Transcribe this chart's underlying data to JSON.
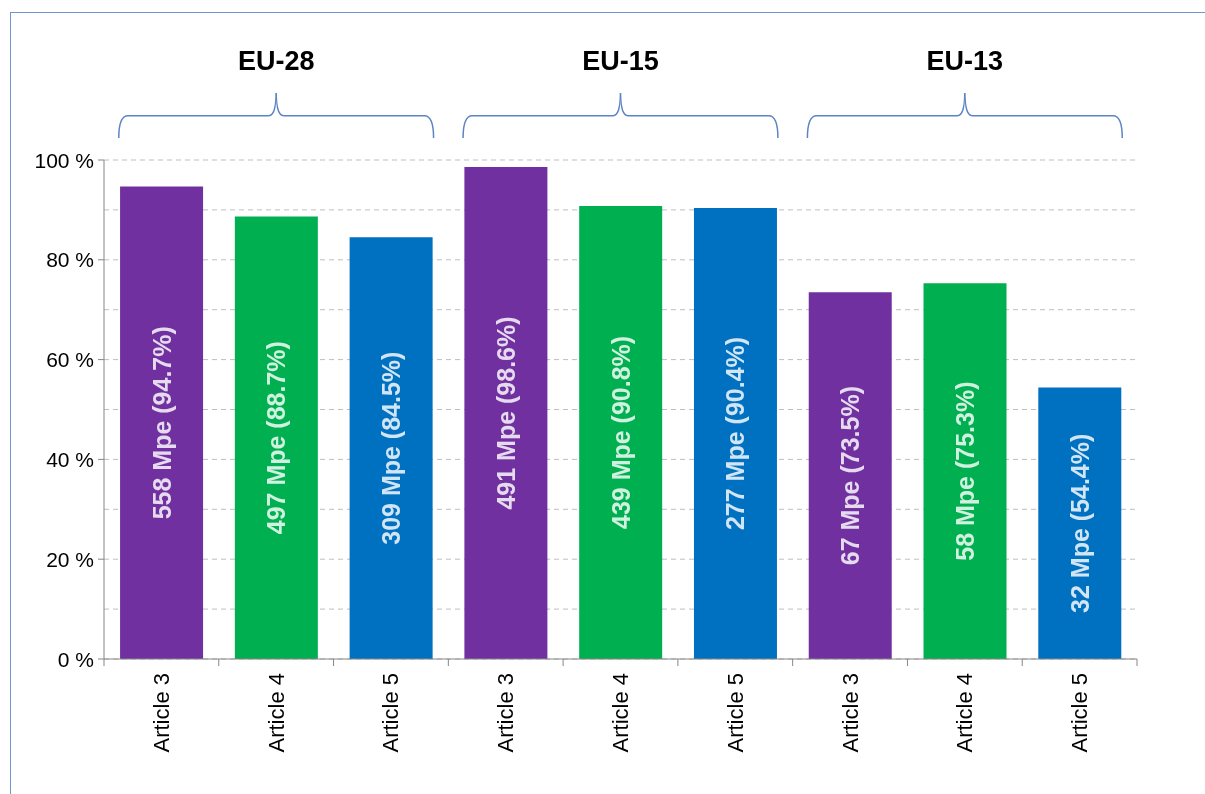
{
  "chart_data": {
    "type": "bar",
    "categories": [
      "Article 3",
      "Article 4",
      "Article 5",
      "Article 3",
      "Article 4",
      "Article 5",
      "Article 3",
      "Article 4",
      "Article 5"
    ],
    "values": [
      94.7,
      88.7,
      84.5,
      98.6,
      90.8,
      90.4,
      73.5,
      75.3,
      54.4
    ],
    "colors": [
      "#7030a0",
      "#00b050",
      "#0070c0",
      "#7030a0",
      "#00b050",
      "#0070c0",
      "#7030a0",
      "#00b050",
      "#0070c0"
    ],
    "value_labels": [
      "558 Mpe (94.7%)",
      "497 Mpe (88.7%)",
      "309 Mpe (84.5%)",
      "491 Mpe (98.6%)",
      "439 Mpe (90.8%)",
      "277 Mpe (90.4%)",
      "67 Mpe (73.5%)",
      "58 Mpe (75.3%)",
      "32 Mpe (54.4%)"
    ],
    "ylim": [
      0,
      100
    ],
    "yticks": [
      {
        "value": 0,
        "label": "0 %"
      },
      {
        "value": 10,
        "label": null
      },
      {
        "value": 20,
        "label": "20 %"
      },
      {
        "value": 30,
        "label": null
      },
      {
        "value": 40,
        "label": "40 %"
      },
      {
        "value": 50,
        "label": null
      },
      {
        "value": 60,
        "label": "60 %"
      },
      {
        "value": 70,
        "label": null
      },
      {
        "value": 80,
        "label": "80 %"
      },
      {
        "value": 90,
        "label": null
      },
      {
        "value": 100,
        "label": "100 %"
      }
    ],
    "grid": "y",
    "annotations": [
      "EU-28",
      "EU-15",
      "EU-13"
    ]
  }
}
